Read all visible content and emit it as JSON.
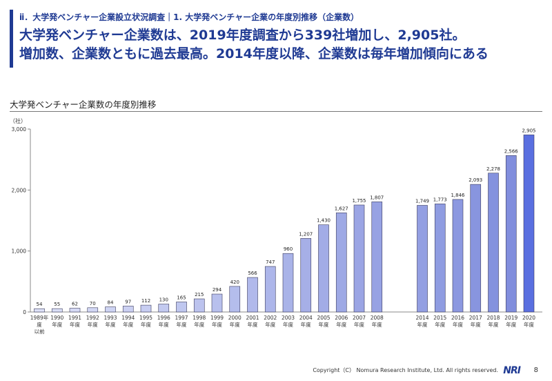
{
  "header": {
    "breadcrumb": "ⅱ．大学発ベンチャー企業設立状況調査｜1. 大学発ベンチャー企業の年度別推移（企業数）",
    "headline_line1": "大学発ベンチャー企業数は、2019年度調査から339社増加し、2,905社。",
    "headline_line2": "増加数、企業数ともに過去最高。2014年度以降、企業数は毎年増加傾向にある"
  },
  "chart_data": {
    "type": "bar",
    "title": "大学発ベンチャー企業数の年度別推移",
    "ylabel": "（社）",
    "ylim": [
      0,
      3000
    ],
    "yticks": [
      "0",
      "1,000",
      "2,000",
      "3,000"
    ],
    "ytick_values": [
      0,
      1000,
      2000,
      3000
    ],
    "grid": false,
    "categories": [
      "1989",
      "1990",
      "1991",
      "1992",
      "1993",
      "1994",
      "1995",
      "1996",
      "1997",
      "1998",
      "1999",
      "2000",
      "2001",
      "2002",
      "2003",
      "2004",
      "2005",
      "2006",
      "2007",
      "2008",
      "2014",
      "2015",
      "2016",
      "2017",
      "2018",
      "2019",
      "2020"
    ],
    "category_suffix": "年度",
    "first_category_label": [
      "1989年",
      "度",
      "以前"
    ],
    "values": [
      54,
      55,
      62,
      70,
      84,
      97,
      112,
      130,
      165,
      215,
      294,
      420,
      566,
      747,
      960,
      1207,
      1430,
      1627,
      1755,
      1807,
      1749,
      1773,
      1846,
      2093,
      2278,
      2566,
      2905
    ],
    "value_labels": [
      "54",
      "55",
      "62",
      "70",
      "84",
      "97",
      "112",
      "130",
      "165",
      "215",
      "294",
      "420",
      "566",
      "747",
      "960",
      "1,207",
      "1,430",
      "1,627",
      "1,755",
      "1,807",
      "1,749",
      "1,773",
      "1,846",
      "2,093",
      "2,278",
      "2,566",
      "2,905"
    ],
    "series_gap_after": "2008",
    "highlight_category": "2020"
  },
  "colors": {
    "accent": "#1f3a93",
    "bar_fill_light": "#dde1f7",
    "bar_fill_dark": "#7d8bdc",
    "highlight_fill": "#5a6fe0",
    "bar_stroke": "#3a3a5a"
  },
  "footer": {
    "copyright": "Copyright（C） Nomura Research Institute, Ltd. All rights reserved.",
    "logo": "NRI",
    "page": "8"
  }
}
